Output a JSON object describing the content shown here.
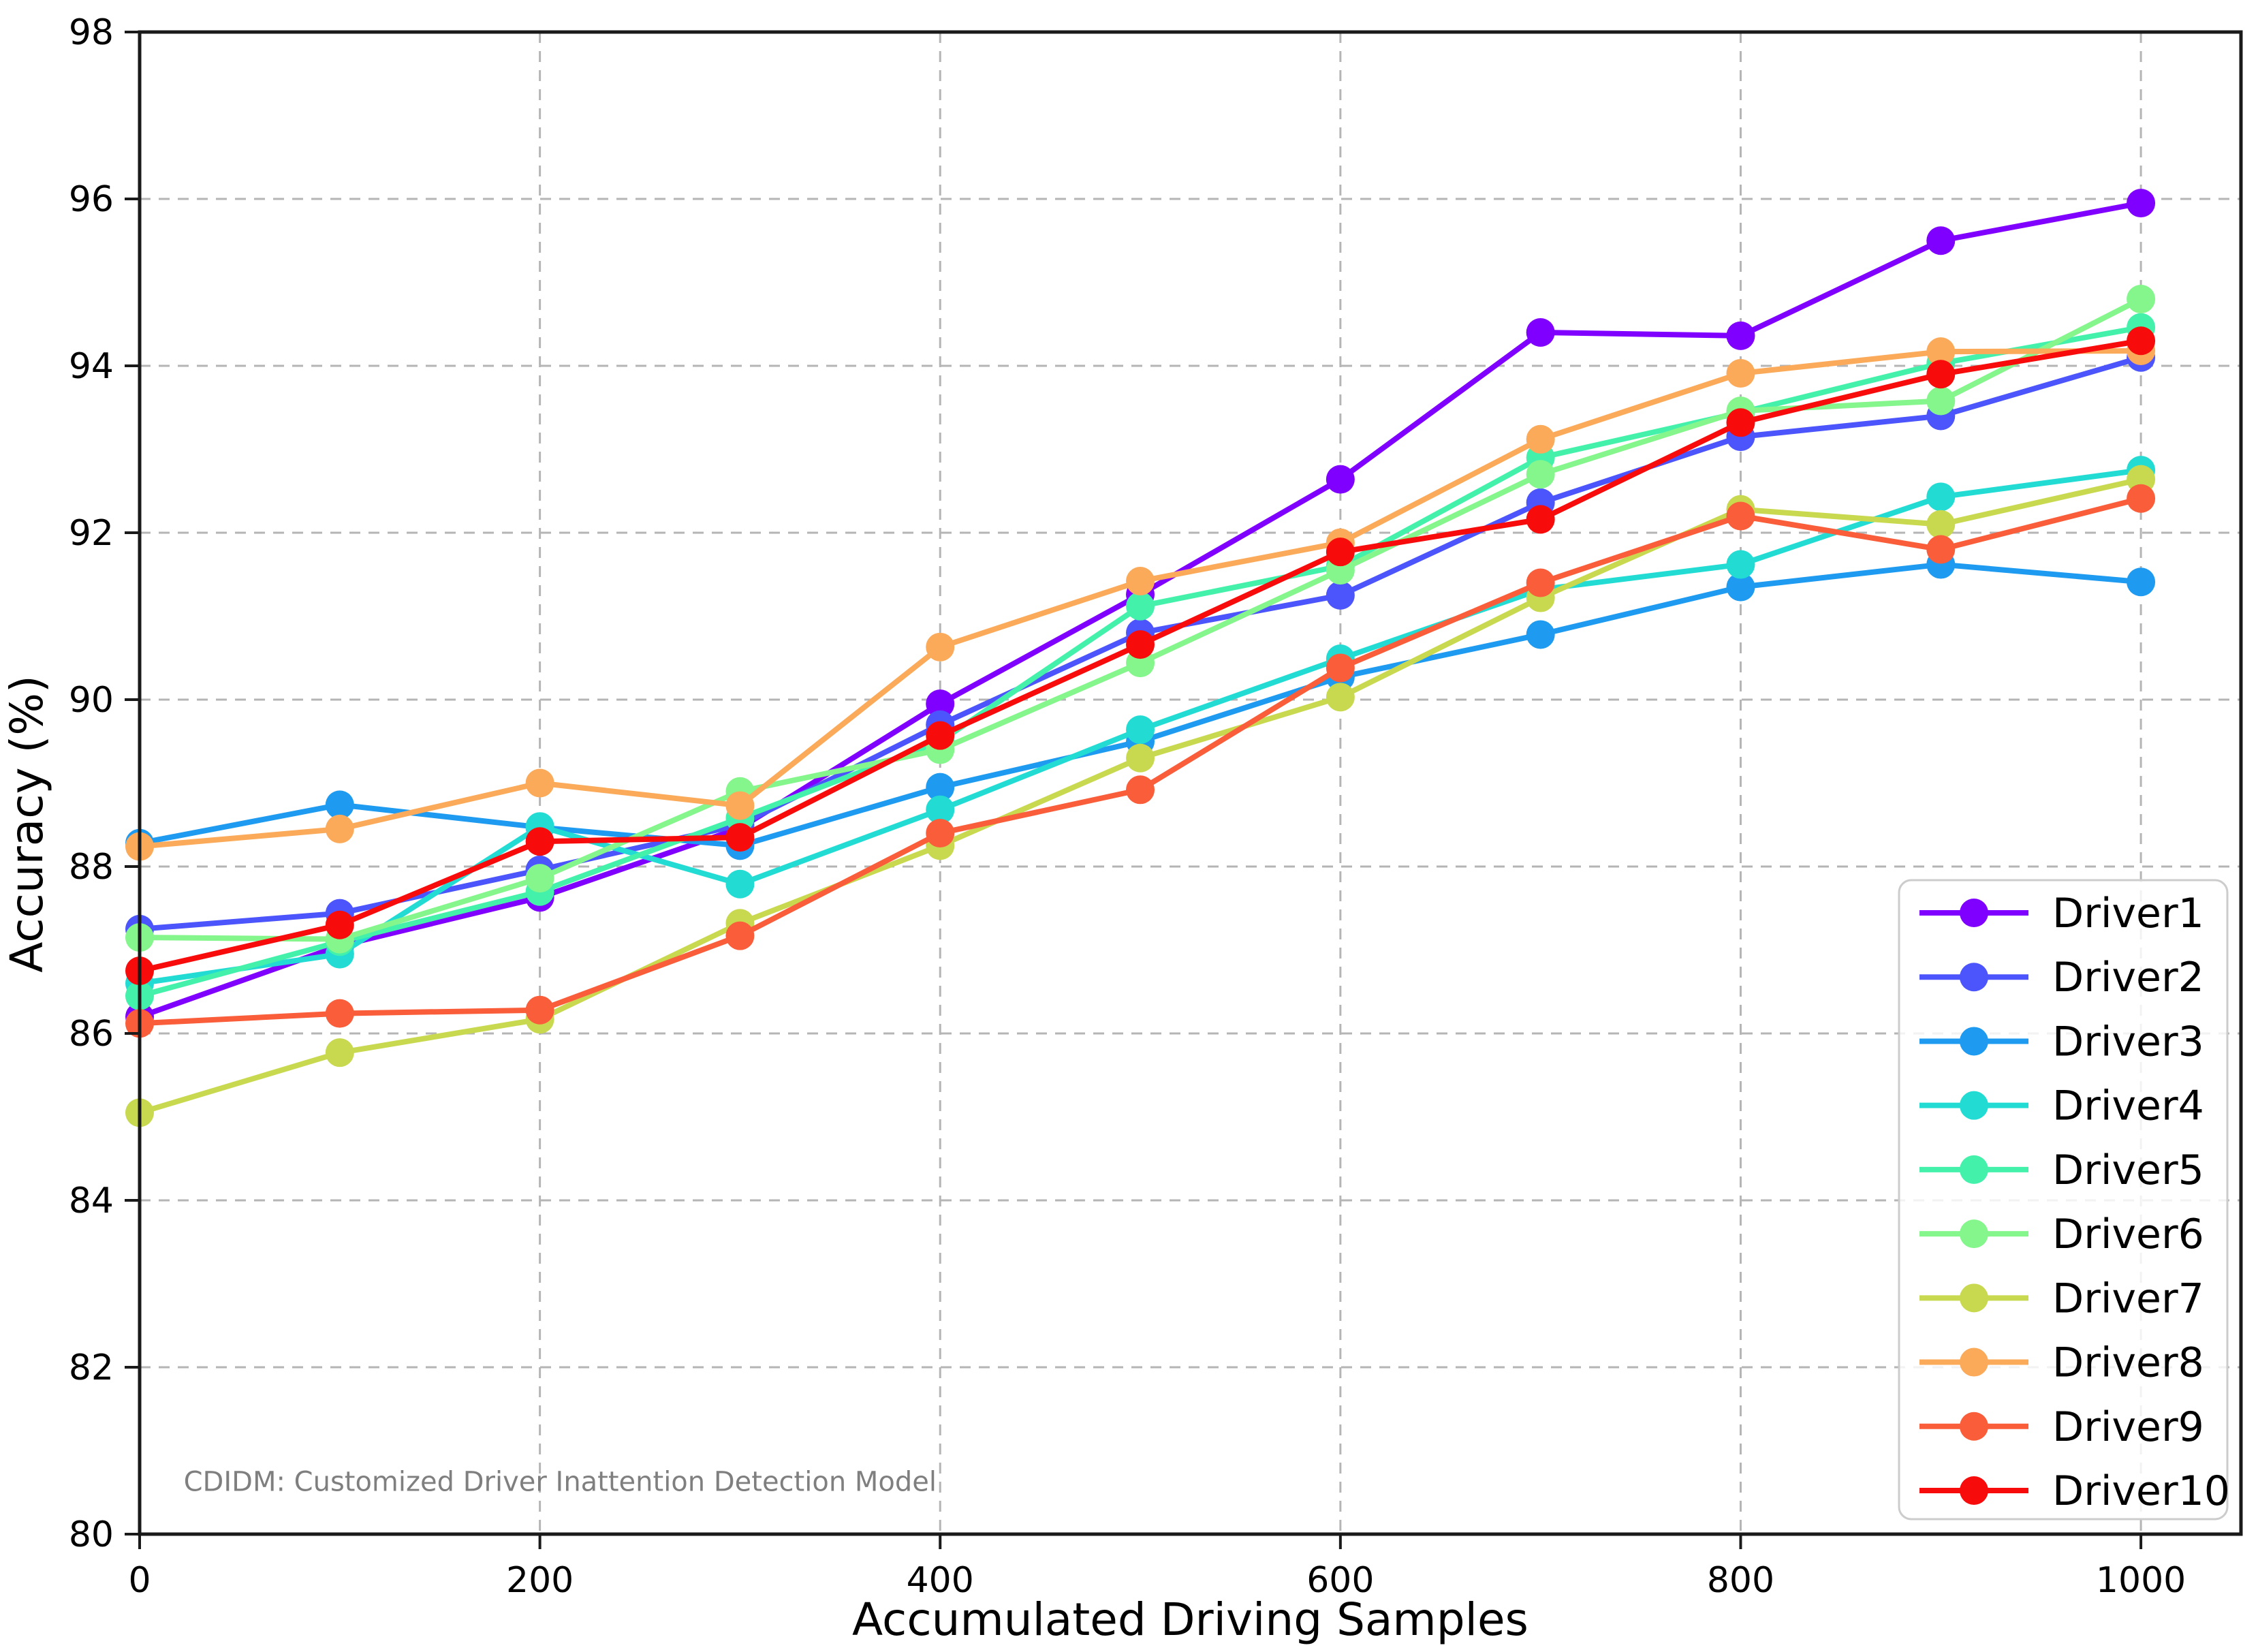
{
  "chart_data": {
    "type": "line",
    "title": "",
    "xlabel": "Accumulated Driving Samples",
    "ylabel": "Accuracy (%)",
    "x": [
      0,
      100,
      200,
      300,
      400,
      500,
      600,
      700,
      800,
      900,
      1000
    ],
    "xticks": [
      0,
      200,
      400,
      600,
      800,
      1000
    ],
    "yticks": [
      80,
      82,
      84,
      86,
      88,
      90,
      92,
      94,
      96,
      98
    ],
    "xlim": [
      0,
      1050
    ],
    "ylim": [
      80,
      98
    ],
    "grid": "dashed",
    "grid_color": "#b5b5b5",
    "legend_position": "lower right",
    "annotation": {
      "text": "CDIDM: Customized Driver Inattention Detection Model",
      "x_sample": 22,
      "y_value": 80.52,
      "color": "#7f7f7f"
    },
    "series": [
      {
        "name": "Driver1",
        "color": "#8000ff",
        "values": [
          86.2,
          87.05,
          87.63,
          88.46,
          89.95,
          91.26,
          92.64,
          94.4,
          94.36,
          95.5,
          95.95
        ]
      },
      {
        "name": "Driver2",
        "color": "#4c54fb",
        "values": [
          87.25,
          87.44,
          87.96,
          88.5,
          89.7,
          90.8,
          91.25,
          92.36,
          93.15,
          93.4,
          94.1
        ]
      },
      {
        "name": "Driver3",
        "color": "#1e9bf0",
        "values": [
          88.28,
          88.74,
          88.47,
          88.25,
          88.95,
          89.5,
          90.27,
          90.78,
          91.35,
          91.62,
          91.41
        ]
      },
      {
        "name": "Driver4",
        "color": "#22dcd4",
        "values": [
          86.6,
          86.95,
          88.48,
          87.79,
          88.68,
          89.64,
          90.49,
          91.32,
          91.62,
          92.43,
          92.75
        ]
      },
      {
        "name": "Driver5",
        "color": "#44f1ab",
        "values": [
          86.45,
          87.1,
          87.7,
          88.58,
          89.5,
          91.12,
          91.6,
          92.9,
          93.44,
          94.03,
          94.46
        ]
      },
      {
        "name": "Driver6",
        "color": "#84f68c",
        "values": [
          87.15,
          87.13,
          87.86,
          88.9,
          89.4,
          90.44,
          91.55,
          92.7,
          93.46,
          93.58,
          94.8
        ]
      },
      {
        "name": "Driver7",
        "color": "#c9d94f",
        "values": [
          85.05,
          85.77,
          86.17,
          87.32,
          88.25,
          89.3,
          90.03,
          91.22,
          92.28,
          92.1,
          92.64
        ]
      },
      {
        "name": "Driver8",
        "color": "#fbaa5a",
        "values": [
          88.24,
          88.45,
          89.0,
          88.73,
          90.63,
          91.42,
          91.88,
          93.12,
          93.91,
          94.17,
          94.18
        ]
      },
      {
        "name": "Driver9",
        "color": "#fa5d3a",
        "values": [
          86.12,
          86.24,
          86.28,
          87.17,
          88.4,
          88.92,
          90.38,
          91.4,
          92.2,
          91.8,
          92.41
        ]
      },
      {
        "name": "Driver10",
        "color": "#f80b0b",
        "values": [
          86.75,
          87.3,
          88.3,
          88.35,
          89.57,
          90.66,
          91.77,
          92.16,
          93.32,
          93.9,
          94.3
        ]
      }
    ]
  }
}
